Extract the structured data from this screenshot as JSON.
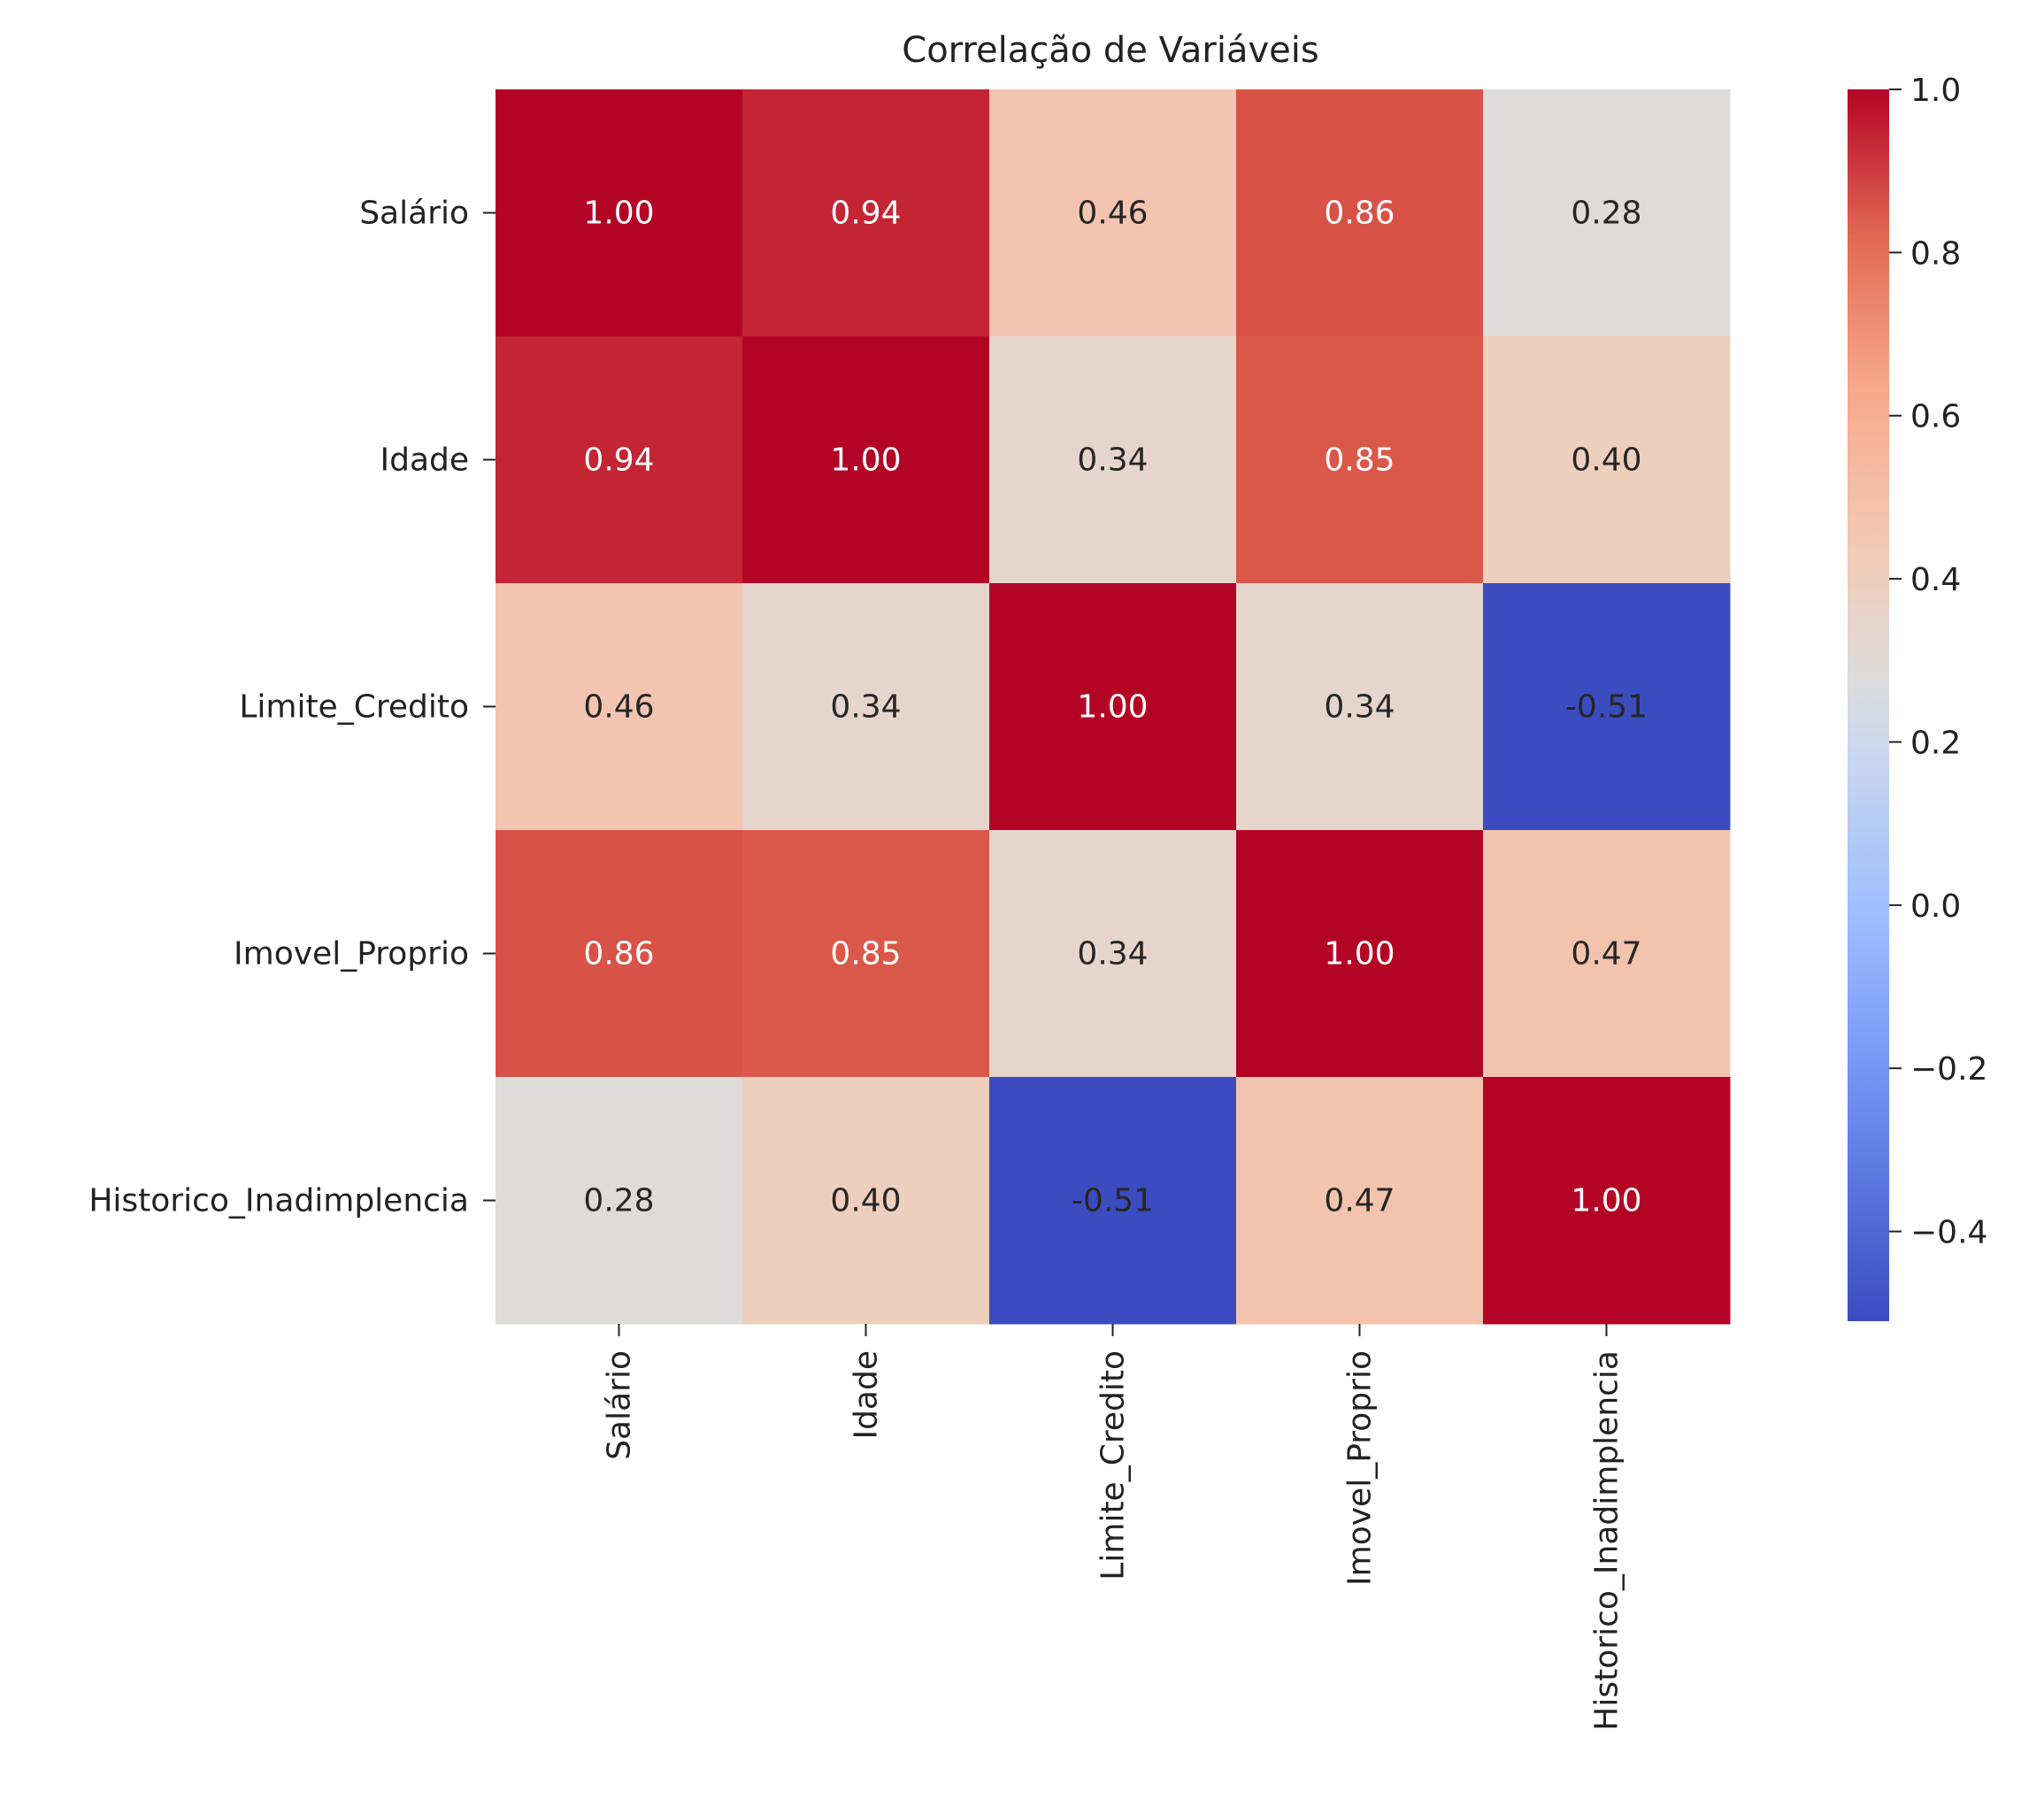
{
  "chart_data": {
    "type": "heatmap",
    "title": "Correlação de Variáveis",
    "variables": [
      "Salário",
      "Idade",
      "Limite_Credito",
      "Imovel_Proprio",
      "Historico_Inadimplencia"
    ],
    "matrix": [
      [
        1.0,
        0.94,
        0.46,
        0.86,
        0.28
      ],
      [
        0.94,
        1.0,
        0.34,
        0.85,
        0.4
      ],
      [
        0.46,
        0.34,
        1.0,
        0.34,
        -0.51
      ],
      [
        0.86,
        0.85,
        0.34,
        1.0,
        0.47
      ],
      [
        0.28,
        0.4,
        -0.51,
        0.47,
        1.0
      ]
    ],
    "cell_labels": [
      [
        "1.00",
        "0.94",
        "0.46",
        "0.86",
        "0.28"
      ],
      [
        "0.94",
        "1.00",
        "0.34",
        "0.85",
        "0.40"
      ],
      [
        "0.46",
        "0.34",
        "1.00",
        "0.34",
        "-0.51"
      ],
      [
        "0.86",
        "0.85",
        "0.34",
        "1.00",
        "0.47"
      ],
      [
        "0.28",
        "0.40",
        "-0.51",
        "0.47",
        "1.00"
      ]
    ],
    "colormap": "coolwarm",
    "colorbar": {
      "range": [
        -0.51,
        1.0
      ],
      "ticks": [
        1.0,
        0.8,
        0.6,
        0.4,
        0.2,
        0.0,
        -0.2,
        -0.4
      ],
      "tick_labels": [
        "1.0",
        "0.8",
        "0.6",
        "0.4",
        "0.2",
        "0.0",
        "−0.2",
        "−0.4"
      ]
    }
  }
}
